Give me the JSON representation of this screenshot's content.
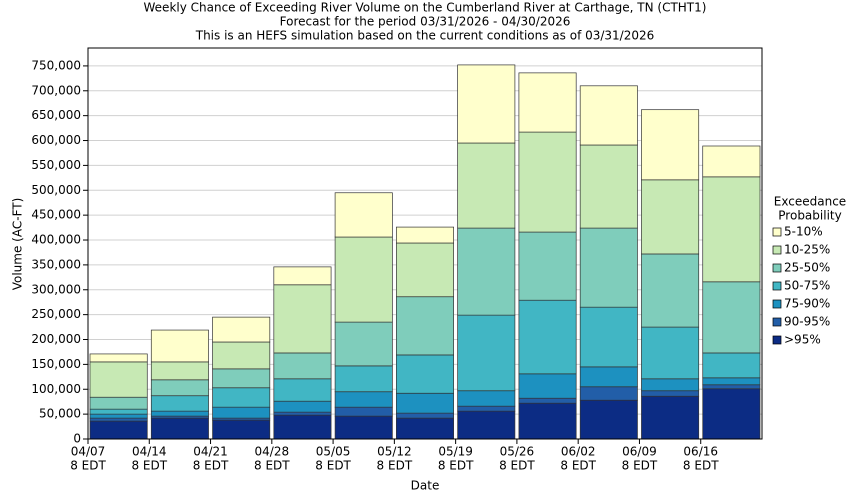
{
  "chart_data": {
    "type": "stacked_bar",
    "title": [
      "Weekly Chance of Exceeding River Volume on the Cumberland River at Carthage, TN (CTHT1)",
      "Forecast for the period 03/31/2026 - 04/30/2026",
      "This is an HEFS simulation based on the current conditions as of 03/31/2026"
    ],
    "x_label": "Date",
    "y_label": "Volume (AC-FT)",
    "legend_title": [
      "Exceedance",
      "Probability"
    ],
    "categories": [
      [
        "04/07",
        "8 EDT"
      ],
      [
        "04/14",
        "8 EDT"
      ],
      [
        "04/21",
        "8 EDT"
      ],
      [
        "04/28",
        "8 EDT"
      ],
      [
        "05/05",
        "8 EDT"
      ],
      [
        "05/12",
        "8 EDT"
      ],
      [
        "05/19",
        "8 EDT"
      ],
      [
        "05/26",
        "8 EDT"
      ],
      [
        "06/02",
        "8 EDT"
      ],
      [
        "06/09",
        "8 EDT"
      ],
      [
        "06/16",
        "8 EDT"
      ]
    ],
    "series": [
      {
        "name": ">95%",
        "color": "#0c2c84",
        "values": [
          36000,
          42000,
          38000,
          48000,
          46000,
          42000,
          56000,
          72000,
          78000,
          86000,
          101000
        ]
      },
      {
        "name": "90-95%",
        "color": "#225ea8",
        "values": [
          6000,
          4000,
          4000,
          6000,
          18000,
          10000,
          10000,
          10000,
          27000,
          11000,
          8000
        ]
      },
      {
        "name": "75-90%",
        "color": "#1d91c0",
        "values": [
          8000,
          10000,
          22000,
          22000,
          31000,
          40000,
          31000,
          49000,
          40000,
          24000,
          14000
        ]
      },
      {
        "name": "50-75%",
        "color": "#41b6c4",
        "values": [
          10000,
          31000,
          39000,
          45000,
          52000,
          77000,
          152000,
          148000,
          120000,
          104000,
          50000
        ]
      },
      {
        "name": "25-50%",
        "color": "#7fcdbb",
        "values": [
          24000,
          32000,
          38000,
          52000,
          88000,
          117000,
          175000,
          137000,
          159000,
          147000,
          143000
        ]
      },
      {
        "name": "10-25%",
        "color": "#c7e9b4",
        "values": [
          71000,
          36000,
          54000,
          137000,
          171000,
          108000,
          171000,
          201000,
          167000,
          149000,
          211000
        ]
      },
      {
        "name": "5-10%",
        "color": "#ffffcc",
        "values": [
          16000,
          64000,
          50000,
          36000,
          89000,
          32000,
          157000,
          119000,
          119000,
          141000,
          62000
        ]
      }
    ],
    "ylim": [
      0,
      786000
    ],
    "yticks": [
      {
        "value": 0,
        "label": "0"
      },
      {
        "value": 50000,
        "label": "50,000"
      },
      {
        "value": 100000,
        "label": "100,000"
      },
      {
        "value": 150000,
        "label": "150,000"
      },
      {
        "value": 200000,
        "label": "200,000"
      },
      {
        "value": 250000,
        "label": "250,000"
      },
      {
        "value": 300000,
        "label": "300,000"
      },
      {
        "value": 350000,
        "label": "350,000"
      },
      {
        "value": 400000,
        "label": "400,000"
      },
      {
        "value": 450000,
        "label": "450,000"
      },
      {
        "value": 500000,
        "label": "500,000"
      },
      {
        "value": 550000,
        "label": "550,000"
      },
      {
        "value": 600000,
        "label": "600,000"
      },
      {
        "value": 650000,
        "label": "650,000"
      },
      {
        "value": 700000,
        "label": "700,000"
      },
      {
        "value": 750000,
        "label": "750,000"
      }
    ],
    "grid": true
  }
}
